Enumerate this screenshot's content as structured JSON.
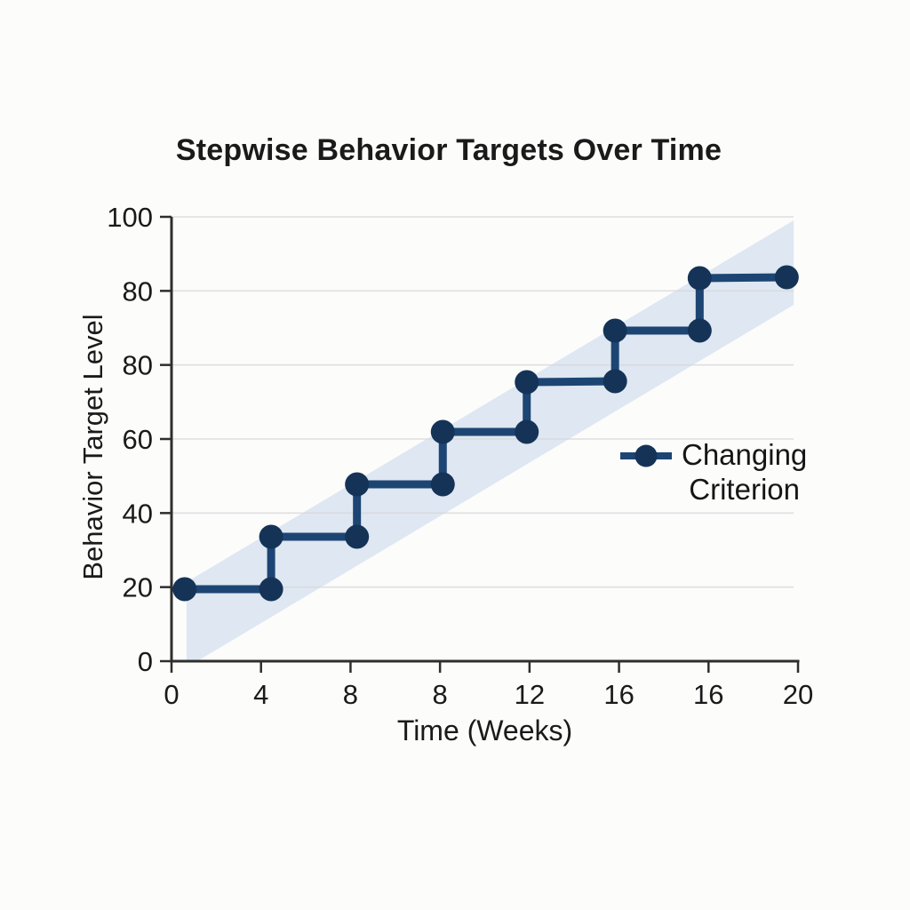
{
  "chart_data": {
    "type": "line",
    "subtype": "step-with-markers",
    "title": "Stepwise Behavior Targets Over Time",
    "xlabel": "Time (Weeks)",
    "ylabel": "Behavior Target Level",
    "x_tick_labels": [
      "0",
      "4",
      "8",
      "8",
      "12",
      "16",
      "16",
      "20"
    ],
    "y_tick_labels": [
      "100",
      "80",
      "80",
      "60",
      "40",
      "20",
      "0"
    ],
    "x_range_weeks": [
      0,
      20
    ],
    "y_range": [
      0,
      100
    ],
    "grid": "horizontal-only",
    "n_phases": 7,
    "plateau_values_approx": [
      19,
      34,
      48,
      62,
      76,
      80,
      84
    ],
    "legend": {
      "position": "center-right",
      "series_name": "Changing Criterion",
      "line1": "Changing",
      "line2": "Criterion"
    },
    "series_points_frac": [
      [
        0.021,
        0.838
      ],
      [
        0.159,
        0.838
      ],
      [
        0.159,
        0.72
      ],
      [
        0.296,
        0.72
      ],
      [
        0.296,
        0.602
      ],
      [
        0.433,
        0.602
      ],
      [
        0.433,
        0.484
      ],
      [
        0.567,
        0.484
      ],
      [
        0.567,
        0.372
      ],
      [
        0.708,
        0.37
      ],
      [
        0.708,
        0.256
      ],
      [
        0.843,
        0.256
      ],
      [
        0.843,
        0.138
      ],
      [
        0.982,
        0.136
      ]
    ],
    "band_polygon_frac": [
      [
        0.024,
        0.822
      ],
      [
        0.993,
        0.008
      ],
      [
        0.993,
        0.198
      ],
      [
        0.041,
        1.0
      ],
      [
        0.024,
        1.0
      ]
    ],
    "colors": {
      "line": "#1d4573",
      "marker": "#153357",
      "band": "#dce6f1",
      "grid": "#d9d9d9",
      "spine": "#2e2e2e",
      "text": "#1a1a1a",
      "background": "#fcfcfb"
    }
  }
}
